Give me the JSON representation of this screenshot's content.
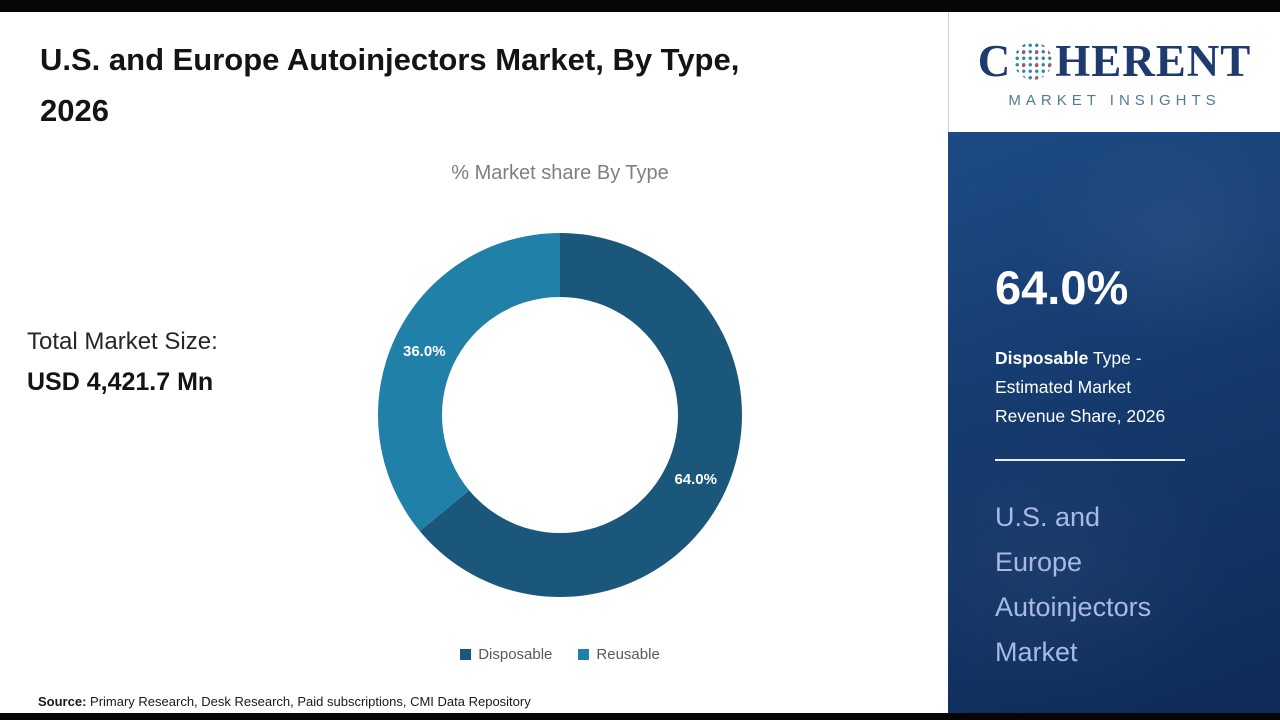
{
  "page": {
    "title_line1": "U.S. and Europe Autoinjectors Market, By Type,",
    "title_line2": "2026",
    "source_label": "Source:",
    "source_text": " Primary Research, Desk Research, Paid subscriptions, CMI Data Repository"
  },
  "logo": {
    "brand_prefix": "C",
    "brand_suffix": "HERENT",
    "tagline": "MARKET INSIGHTS",
    "brand_color": "#1e3a6e",
    "globe_icon": "dotted-globe"
  },
  "left_panel": {
    "total_label": "Total Market Size:",
    "total_value": "USD 4,421.7 Mn"
  },
  "sidebar": {
    "stat_value": "64.0%",
    "stat_desc_bold": "Disposable",
    "stat_desc_rest": " Type - Estimated Market Revenue Share, 2026",
    "market_name": "U.S. and Europe Autoinjectors Market",
    "panel_color": "#153a6d",
    "market_name_color": "#a8bae2"
  },
  "chart_data": {
    "type": "pie",
    "subtype": "donut",
    "title": "% Market share By Type",
    "categories": [
      "Disposable",
      "Reusable"
    ],
    "values": [
      64.0,
      36.0
    ],
    "labels": [
      "64.0%",
      "36.0%"
    ],
    "colors": [
      "#1a577b",
      "#2180a8"
    ],
    "start_angle_deg": 0,
    "direction": "clockwise",
    "legend_position": "bottom",
    "inner_radius_ratio": 0.65
  }
}
